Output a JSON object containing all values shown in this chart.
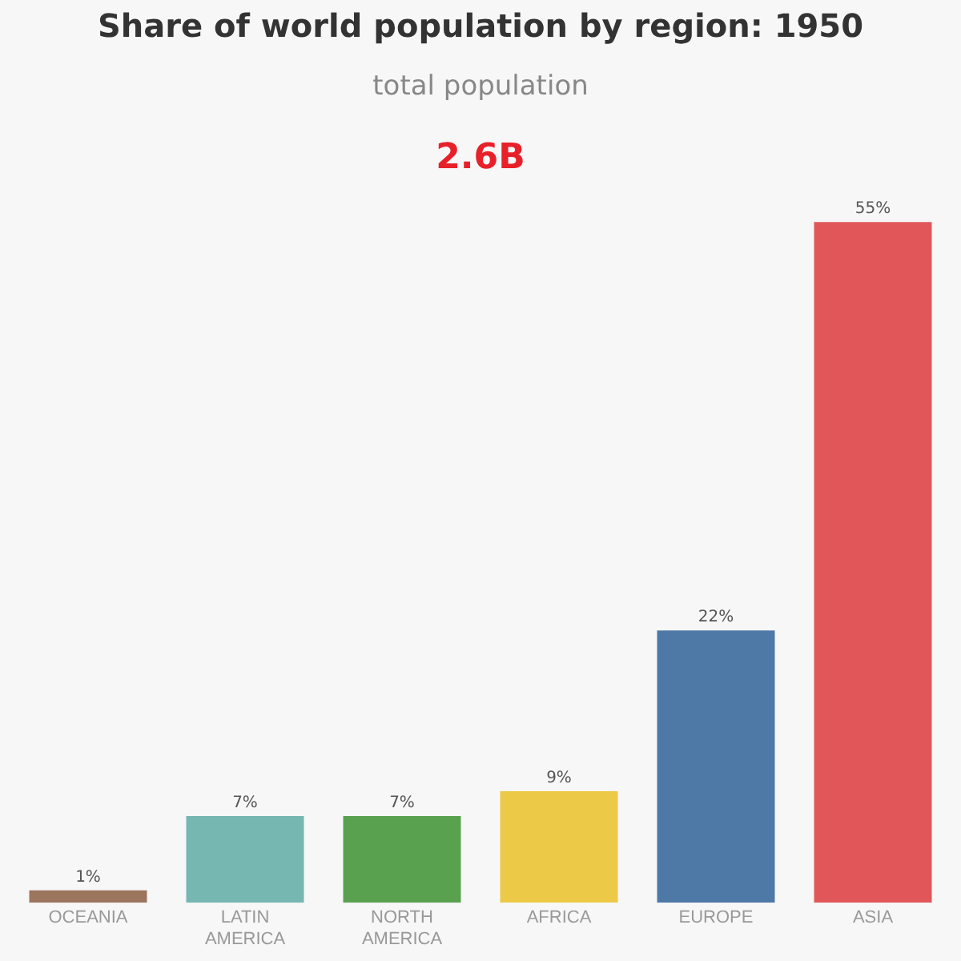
{
  "chart_data": {
    "type": "bar",
    "title": "Share of world population by region: 1950",
    "subtitle": "total population",
    "annotations": [
      "2.6B"
    ],
    "categories": [
      "OCEANIA",
      "LATIN AMERICA",
      "NORTH AMERICA",
      "AFRICA",
      "EUROPE",
      "ASIA"
    ],
    "values": [
      1,
      7,
      7,
      9,
      22,
      55
    ],
    "colors": [
      "#9c755f",
      "#76b7b2",
      "#59a14f",
      "#edc948",
      "#4e79a7",
      "#e15759"
    ],
    "value_labels": [
      "1%",
      "7%",
      "7%",
      "9%",
      "22%",
      "55%"
    ],
    "grid": false,
    "legend": false
  }
}
